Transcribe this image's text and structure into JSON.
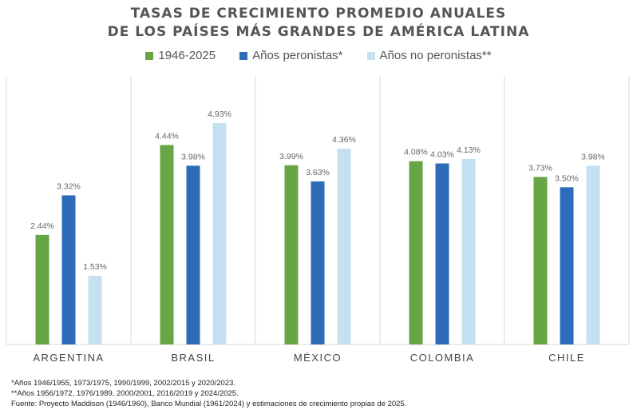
{
  "chart_data": {
    "type": "bar",
    "title": "TASAS DE CRECIMIENTO PROMEDIO ANUALES",
    "subtitle": "DE LOS PAÍSES MÁS GRANDES DE AMÉRICA LATINA",
    "categories": [
      "ARGENTINA",
      "BRASIL",
      "MÉXICO",
      "COLOMBIA",
      "CHILE"
    ],
    "series": [
      {
        "name": "1946-2025",
        "color": "#66a644",
        "values": [
          2.44,
          4.44,
          3.99,
          4.08,
          3.73
        ]
      },
      {
        "name": "Años peronistas*",
        "color": "#2e6cba",
        "values": [
          3.32,
          3.98,
          3.63,
          4.03,
          3.5
        ]
      },
      {
        "name": "Años no peronistas**",
        "color": "#c5e0f0",
        "values": [
          1.53,
          4.93,
          4.36,
          4.13,
          3.98
        ]
      }
    ],
    "value_suffix": "%",
    "xlabel": "",
    "ylabel": "",
    "ylim": [
      0,
      6
    ],
    "grid": false,
    "legend_position": "top-center"
  },
  "notes": [
    "*Años 1946/1955, 1973/1975, 1990/1999, 2002/2015 y 2020/2023.",
    "**Años 1956/1972, 1976/1989, 2000/2001, 2016/2019 y 2024/2025.",
    "Fuente: Proyecto Maddison (1946/1960), Banco Mundial (1961/2024) y estimaciones de crecimiento propias de 2025."
  ]
}
